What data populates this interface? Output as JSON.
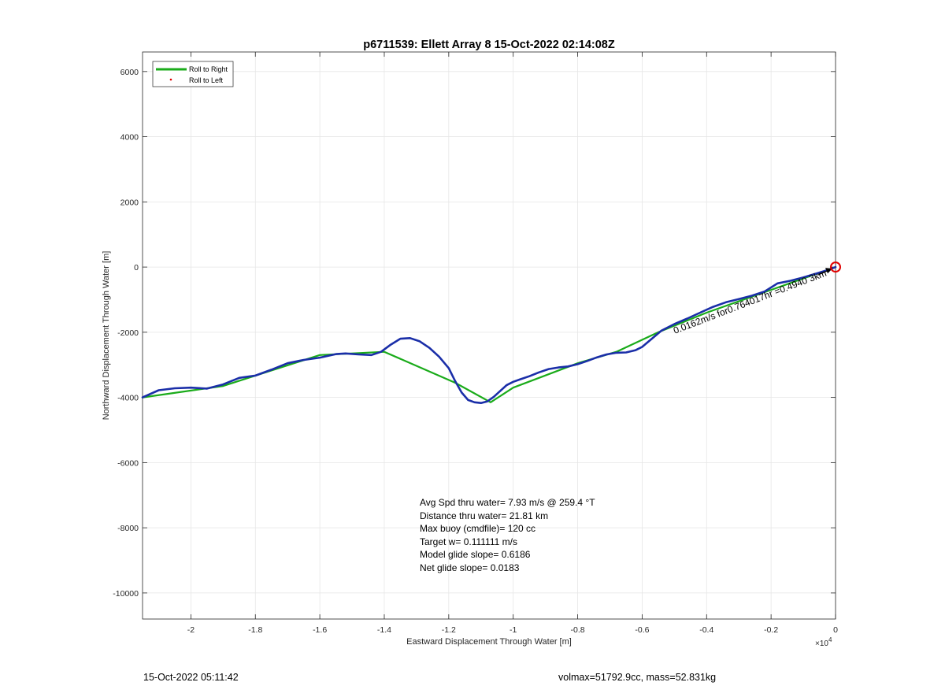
{
  "chart_data": {
    "type": "line",
    "title": "p6711539: Ellett Array 8 15-Oct-2022 02:14:08Z",
    "xlabel": "Eastward Displacement Through Water [m]",
    "ylabel": "Northward Displacement Through Water [m]",
    "x_exponent_label": "×10",
    "x_exponent_power": "4",
    "xlim": [
      -2.15,
      0
    ],
    "ylim": [
      -10800,
      6600
    ],
    "x_ticks": [
      -2,
      -1.8,
      -1.6,
      -1.4,
      -1.2,
      -1,
      -0.8,
      -0.6,
      -0.4,
      -0.2,
      0
    ],
    "x_tick_labels": [
      "-2",
      "-1.8",
      "-1.6",
      "-1.4",
      "-1.2",
      "-1",
      "-0.8",
      "-0.6",
      "-0.4",
      "-0.2",
      "0"
    ],
    "y_ticks": [
      6000,
      4000,
      2000,
      0,
      -2000,
      -4000,
      -6000,
      -8000,
      -10000
    ],
    "y_tick_labels": [
      "6000",
      "4000",
      "2000",
      "0",
      "-2000",
      "-4000",
      "-6000",
      "-8000",
      "-10000"
    ],
    "grid": true,
    "legend_position": "top-left",
    "legend": [
      {
        "label": "Roll to Right",
        "color": "#1aab1a",
        "style": "line"
      },
      {
        "label": "Roll to Left",
        "color": "#e00000",
        "style": "point"
      }
    ],
    "series": [
      {
        "name": "Roll to Right",
        "color": "#1aab1a",
        "x": [
          -2.15,
          -1.9,
          -1.6,
          -1.4,
          -1.18,
          -1.07,
          -1.0,
          -0.8,
          -0.68,
          -0.55,
          -0.4,
          -0.2,
          0
        ],
        "y": [
          -4000,
          -3650,
          -2700,
          -2600,
          -3550,
          -4150,
          -3700,
          -2950,
          -2600,
          -2000,
          -1400,
          -700,
          0
        ]
      },
      {
        "name": "track",
        "color": "#1a2ea8",
        "x": [
          -2.15,
          -2.1,
          -2.05,
          -2.0,
          -1.95,
          -1.9,
          -1.85,
          -1.8,
          -1.75,
          -1.7,
          -1.65,
          -1.6,
          -1.55,
          -1.52,
          -1.48,
          -1.44,
          -1.41,
          -1.38,
          -1.35,
          -1.32,
          -1.29,
          -1.26,
          -1.23,
          -1.2,
          -1.18,
          -1.16,
          -1.14,
          -1.12,
          -1.1,
          -1.08,
          -1.06,
          -1.04,
          -1.02,
          -1.0,
          -0.98,
          -0.95,
          -0.92,
          -0.89,
          -0.86,
          -0.83,
          -0.8,
          -0.77,
          -0.74,
          -0.71,
          -0.68,
          -0.65,
          -0.62,
          -0.6,
          -0.57,
          -0.54,
          -0.5,
          -0.46,
          -0.42,
          -0.38,
          -0.34,
          -0.3,
          -0.26,
          -0.22,
          -0.18,
          -0.14,
          -0.1,
          -0.06,
          -0.02,
          0
        ],
        "y": [
          -4000,
          -3780,
          -3720,
          -3700,
          -3730,
          -3600,
          -3400,
          -3330,
          -3150,
          -2950,
          -2850,
          -2780,
          -2670,
          -2650,
          -2680,
          -2700,
          -2600,
          -2380,
          -2200,
          -2180,
          -2280,
          -2480,
          -2750,
          -3100,
          -3500,
          -3850,
          -4080,
          -4150,
          -4170,
          -4120,
          -3980,
          -3800,
          -3620,
          -3520,
          -3450,
          -3350,
          -3230,
          -3130,
          -3080,
          -3050,
          -2980,
          -2880,
          -2770,
          -2680,
          -2630,
          -2620,
          -2550,
          -2450,
          -2200,
          -1950,
          -1750,
          -1580,
          -1400,
          -1220,
          -1080,
          -980,
          -880,
          -750,
          -500,
          -420,
          -320,
          -200,
          -80,
          0
        ]
      }
    ],
    "start_marker": {
      "x": 0,
      "y": 0,
      "color": "#e00000"
    },
    "arrow_label": "0.0162m/s for0.764017hr =0.4940 3km",
    "annotations": [
      "Avg Spd thru water=  7.93 m/s @ 259.4 °T",
      "Distance thru water= 21.81 km",
      "Max buoy (cmdfile)= 120 cc",
      "Target w= 0.111111 m/s",
      "Model glide slope= 0.6186",
      "Net glide slope= 0.0183"
    ]
  },
  "footer": {
    "timestamp": "15-Oct-2022 05:11:42",
    "stats": "volmax=51792.9cc, mass=52.831kg"
  }
}
